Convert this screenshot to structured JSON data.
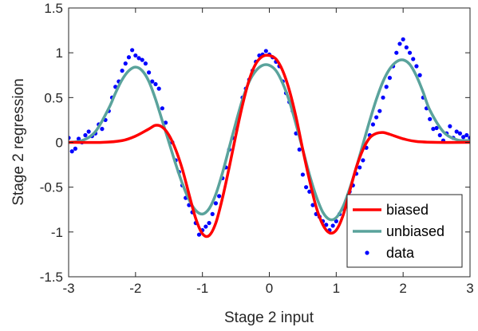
{
  "chart_data": {
    "type": "line",
    "xlabel": "Stage 2 input",
    "ylabel": "Stage 2 regression",
    "xlim": [
      -3,
      3
    ],
    "ylim": [
      -1.5,
      1.5
    ],
    "x_ticks": [
      -3,
      -2,
      -1,
      0,
      1,
      2,
      3
    ],
    "y_ticks": [
      -1.5,
      -1,
      -0.5,
      0,
      0.5,
      1,
      1.5
    ],
    "x_tick_labels": [
      "-3",
      "-2",
      "-1",
      "0",
      "1",
      "2",
      "3"
    ],
    "y_tick_labels": [
      "-1.5",
      "-1",
      "-0.5",
      "0",
      "0.5",
      "1",
      "1.5"
    ],
    "grid": false,
    "legend_position": "bottom-right",
    "series": [
      {
        "name": "biased",
        "kind": "line",
        "color": "#ff0000",
        "x": [
          -3,
          -2.5,
          -2.2,
          -2.0,
          -1.8,
          -1.7,
          -1.6,
          -1.5,
          -1.4,
          -1.3,
          -1.2,
          -1.1,
          -1.0,
          -0.9,
          -0.8,
          -0.7,
          -0.6,
          -0.5,
          -0.4,
          -0.3,
          -0.2,
          -0.1,
          0,
          0.1,
          0.2,
          0.3,
          0.4,
          0.5,
          0.6,
          0.7,
          0.8,
          0.9,
          1.0,
          1.1,
          1.2,
          1.3,
          1.4,
          1.5,
          1.6,
          1.7,
          1.8,
          2.0,
          2.2,
          2.5,
          3
        ],
        "y": [
          0,
          0,
          0.02,
          0.07,
          0.15,
          0.19,
          0.17,
          0.08,
          -0.08,
          -0.3,
          -0.58,
          -0.85,
          -1.02,
          -1.04,
          -0.9,
          -0.62,
          -0.28,
          0.08,
          0.42,
          0.7,
          0.88,
          0.96,
          0.97,
          0.93,
          0.8,
          0.58,
          0.28,
          -0.08,
          -0.42,
          -0.72,
          -0.92,
          -1.01,
          -0.98,
          -0.82,
          -0.55,
          -0.28,
          -0.08,
          0.05,
          0.1,
          0.11,
          0.09,
          0.04,
          0.01,
          0,
          0
        ]
      },
      {
        "name": "unbiased",
        "kind": "line",
        "color": "#5aa39c",
        "x": [
          -3,
          -2.8,
          -2.6,
          -2.4,
          -2.3,
          -2.2,
          -2.1,
          -2.0,
          -1.9,
          -1.8,
          -1.7,
          -1.6,
          -1.5,
          -1.4,
          -1.3,
          -1.2,
          -1.1,
          -1.0,
          -0.9,
          -0.8,
          -0.7,
          -0.6,
          -0.5,
          -0.4,
          -0.3,
          -0.2,
          -0.1,
          0,
          0.1,
          0.2,
          0.3,
          0.4,
          0.5,
          0.6,
          0.7,
          0.8,
          0.9,
          1.0,
          1.1,
          1.2,
          1.3,
          1.4,
          1.5,
          1.6,
          1.7,
          1.8,
          1.9,
          2.0,
          2.1,
          2.2,
          2.3,
          2.4,
          2.6,
          2.8,
          3
        ],
        "y": [
          0,
          0.02,
          0.12,
          0.38,
          0.55,
          0.7,
          0.8,
          0.84,
          0.8,
          0.68,
          0.48,
          0.24,
          0.0,
          -0.24,
          -0.46,
          -0.64,
          -0.76,
          -0.8,
          -0.74,
          -0.58,
          -0.34,
          -0.06,
          0.22,
          0.48,
          0.68,
          0.8,
          0.86,
          0.86,
          0.8,
          0.66,
          0.46,
          0.2,
          -0.08,
          -0.36,
          -0.6,
          -0.78,
          -0.86,
          -0.84,
          -0.72,
          -0.52,
          -0.28,
          -0.02,
          0.24,
          0.48,
          0.68,
          0.82,
          0.9,
          0.92,
          0.87,
          0.74,
          0.56,
          0.36,
          0.12,
          0.03,
          0.02
        ]
      },
      {
        "name": "data",
        "kind": "scatter",
        "color": "#0000ff",
        "x": [
          -3.0,
          -2.95,
          -2.9,
          -2.85,
          -2.8,
          -2.75,
          -2.7,
          -2.65,
          -2.6,
          -2.55,
          -2.5,
          -2.45,
          -2.4,
          -2.35,
          -2.3,
          -2.25,
          -2.2,
          -2.15,
          -2.1,
          -2.05,
          -2.0,
          -1.95,
          -1.9,
          -1.85,
          -1.8,
          -1.75,
          -1.7,
          -1.65,
          -1.6,
          -1.55,
          -1.5,
          -1.45,
          -1.4,
          -1.35,
          -1.3,
          -1.25,
          -1.2,
          -1.15,
          -1.1,
          -1.05,
          -1.0,
          -0.95,
          -0.9,
          -0.85,
          -0.8,
          -0.75,
          -0.7,
          -0.65,
          -0.6,
          -0.55,
          -0.5,
          -0.45,
          -0.4,
          -0.35,
          -0.3,
          -0.25,
          -0.2,
          -0.15,
          -0.1,
          -0.05,
          0.0,
          0.05,
          0.1,
          0.15,
          0.2,
          0.25,
          0.3,
          0.35,
          0.4,
          0.45,
          0.5,
          0.55,
          0.6,
          0.65,
          0.7,
          0.75,
          0.8,
          0.85,
          0.9,
          0.95,
          1.0,
          1.05,
          1.1,
          1.15,
          1.2,
          1.25,
          1.3,
          1.35,
          1.4,
          1.45,
          1.5,
          1.55,
          1.6,
          1.65,
          1.7,
          1.75,
          1.8,
          1.85,
          1.9,
          1.95,
          2.0,
          2.05,
          2.1,
          2.15,
          2.2,
          2.25,
          2.3,
          2.35,
          2.4,
          2.45,
          2.5,
          2.55,
          2.6,
          2.65,
          2.7,
          2.75,
          2.8,
          2.85,
          2.9,
          2.95,
          3.0
        ],
        "y": [
          0.05,
          -0.1,
          -0.07,
          0.04,
          0.0,
          0.08,
          0.12,
          0.07,
          0.1,
          0.2,
          0.15,
          0.25,
          0.35,
          0.5,
          0.62,
          0.68,
          0.8,
          0.88,
          0.95,
          1.03,
          0.97,
          0.94,
          0.92,
          0.88,
          0.78,
          0.68,
          0.65,
          0.6,
          0.38,
          0.22,
          0.06,
          0.0,
          -0.2,
          -0.33,
          -0.48,
          -0.62,
          -0.7,
          -0.78,
          -0.9,
          -1.03,
          -0.98,
          -0.94,
          -0.9,
          -0.8,
          -0.68,
          -0.6,
          -0.4,
          -0.28,
          -0.08,
          0.05,
          0.16,
          0.32,
          0.5,
          0.6,
          0.7,
          0.8,
          0.9,
          0.97,
          0.98,
          1.02,
          0.98,
          0.95,
          0.9,
          0.85,
          0.68,
          0.55,
          0.45,
          0.35,
          0.1,
          -0.08,
          -0.36,
          -0.5,
          -0.55,
          -0.7,
          -0.8,
          -0.83,
          -0.88,
          -0.92,
          -0.98,
          -0.93,
          -0.88,
          -0.8,
          -0.74,
          -0.65,
          -0.55,
          -0.48,
          -0.35,
          -0.28,
          -0.2,
          -0.06,
          0.08,
          0.2,
          0.28,
          0.35,
          0.5,
          0.62,
          0.72,
          0.85,
          1.0,
          1.1,
          1.15,
          1.06,
          1.0,
          0.93,
          0.85,
          0.75,
          0.5,
          0.38,
          0.26,
          0.15,
          0.16,
          0.08,
          0.02,
          0.1,
          0.18,
          0.05,
          0.12,
          0.1,
          0.06,
          0.08,
          0.05
        ]
      }
    ]
  }
}
